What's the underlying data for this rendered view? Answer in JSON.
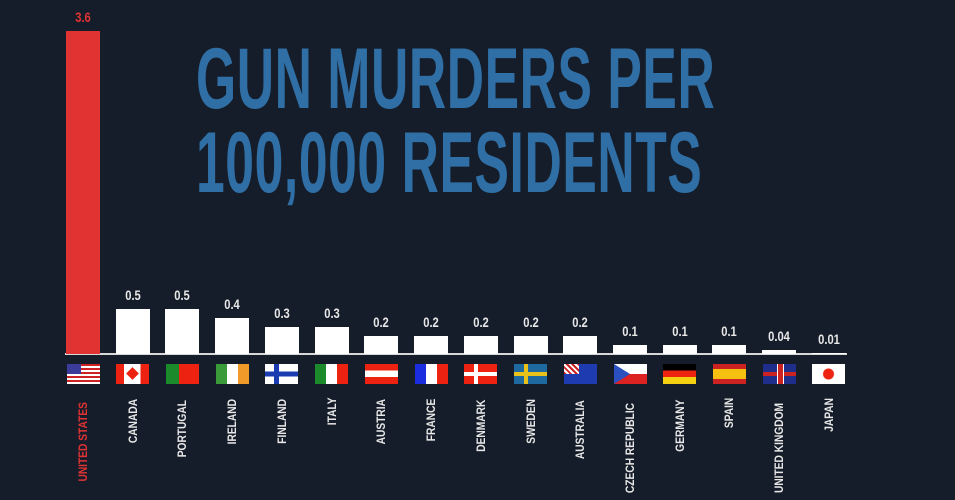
{
  "chart_data": {
    "type": "bar",
    "title": "GUN MURDERS PER 100,000 RESIDENTS",
    "title_lines": [
      "GUN MURDERS PER",
      "100,000 RESIDENTS"
    ],
    "categories": [
      "UNITED STATES",
      "CANADA",
      "PORTUGAL",
      "IRELAND",
      "FINLAND",
      "ITALY",
      "AUSTRIA",
      "FRANCE",
      "DENMARK",
      "SWEDEN",
      "AUSTRALIA",
      "CZECH REPUBLIC",
      "GERMANY",
      "SPAIN",
      "UNITED KINGDOM",
      "JAPAN"
    ],
    "values": [
      3.6,
      0.5,
      0.5,
      0.4,
      0.3,
      0.3,
      0.2,
      0.2,
      0.2,
      0.2,
      0.2,
      0.1,
      0.1,
      0.1,
      0.04,
      0.01
    ],
    "value_labels": [
      "3.6",
      "0.5",
      "0.5",
      "0.4",
      "0.3",
      "0.3",
      "0.2",
      "0.2",
      "0.2",
      "0.2",
      "0.2",
      "0.1",
      "0.1",
      "0.1",
      "0.04",
      "0.01"
    ],
    "flag_icons": [
      "us",
      "ca",
      "pt",
      "ie",
      "fi",
      "it",
      "at",
      "fr",
      "dk",
      "se",
      "au",
      "cz",
      "de",
      "es",
      "gb",
      "jp"
    ],
    "highlight_index": 0,
    "ylim": [
      0,
      3.6
    ],
    "xlabel": "",
    "ylabel": "",
    "grid": false
  },
  "colors": {
    "background": "#161d2a",
    "title": "#2f6fa6",
    "highlight": "#e23333",
    "bar": "#ffffff"
  }
}
